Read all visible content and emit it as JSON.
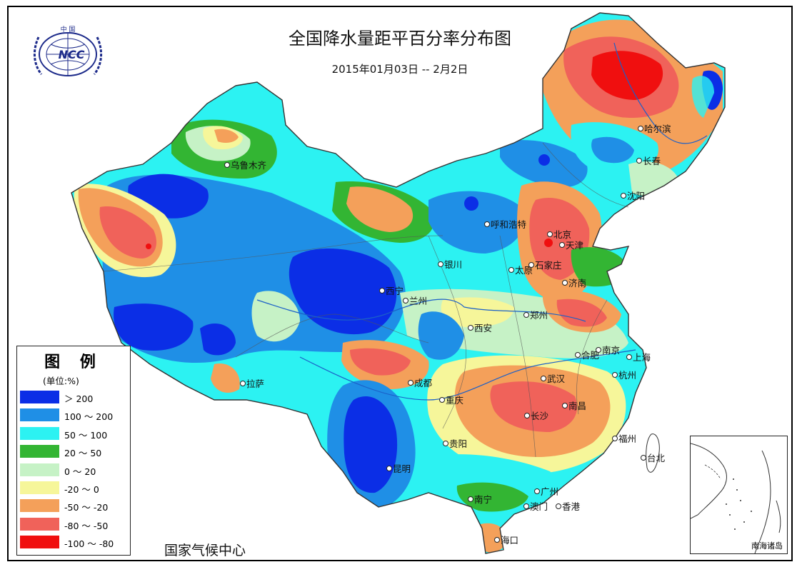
{
  "title": "全国降水量距平百分率分布图",
  "subtitle": "2015年01月03日 -- 2月2日",
  "footer": "国家气候中心",
  "logo": {
    "top_text": "中 国",
    "mark_text": "NCC"
  },
  "legend": {
    "title": "图 例",
    "unit": "(单位:%)",
    "items": [
      {
        "label": "＞ 200",
        "color": "#0b2ee6"
      },
      {
        "label": "100 ～ 200",
        "color": "#1f8fe6"
      },
      {
        "label": "50 ～ 100",
        "color": "#2cf2f2"
      },
      {
        "label": "20 ～ 50",
        "color": "#33b533"
      },
      {
        "label": "0 ～ 20",
        "color": "#c6f2c6"
      },
      {
        "label": "-20 ～ 0",
        "color": "#f6f69a"
      },
      {
        "label": "-50 ～ -20",
        "color": "#f4a05a"
      },
      {
        "label": "-80 ～ -50",
        "color": "#f0625a"
      },
      {
        "label": "-100 ～ -80",
        "color": "#f00f0f"
      }
    ]
  },
  "cities": [
    {
      "name": "乌鲁木齐"
    },
    {
      "name": "拉萨"
    },
    {
      "name": "西宁"
    },
    {
      "name": "兰州"
    },
    {
      "name": "银川"
    },
    {
      "name": "呼和浩特"
    },
    {
      "name": "太原"
    },
    {
      "name": "石家庄"
    },
    {
      "name": "北京"
    },
    {
      "name": "天津"
    },
    {
      "name": "济南"
    },
    {
      "name": "郑州"
    },
    {
      "name": "西安"
    },
    {
      "name": "成都"
    },
    {
      "name": "重庆"
    },
    {
      "name": "贵阳"
    },
    {
      "name": "昆明"
    },
    {
      "name": "南宁"
    },
    {
      "name": "广州"
    },
    {
      "name": "澳门"
    },
    {
      "name": "香港"
    },
    {
      "name": "海口"
    },
    {
      "name": "长沙"
    },
    {
      "name": "武汉"
    },
    {
      "name": "南昌"
    },
    {
      "name": "合肥"
    },
    {
      "name": "南京"
    },
    {
      "name": "上海"
    },
    {
      "name": "杭州"
    },
    {
      "name": "福州"
    },
    {
      "name": "台北"
    },
    {
      "name": "沈阳"
    },
    {
      "name": "长春"
    },
    {
      "name": "哈尔滨"
    }
  ],
  "inset_label": "南海诸岛"
}
